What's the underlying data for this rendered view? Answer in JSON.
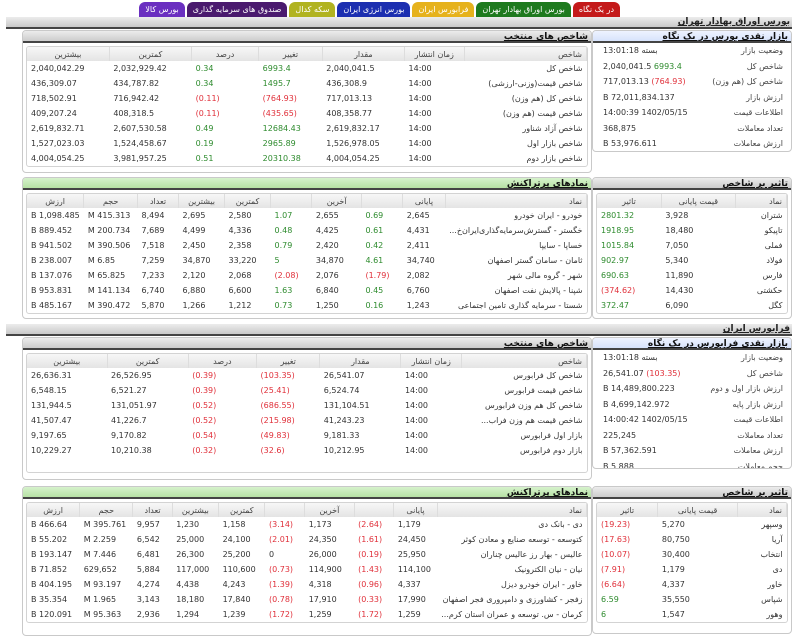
{
  "tabs": [
    {
      "label": "در یک نگاه",
      "color": "#c41a1a"
    },
    {
      "label": "بورس اوراق بهادار تهران",
      "color": "#1e7a1e"
    },
    {
      "label": "فرابورس ایران",
      "color": "#e6b21c"
    },
    {
      "label": "بورس انرژی ایران",
      "color": "#1c2fb0"
    },
    {
      "label": "سکه کدال",
      "color": "#b1b320"
    },
    {
      "label": "صندوق های سرمایه گذاری",
      "color": "#4a1a6e"
    },
    {
      "label": "بورس کالا",
      "color": "#6a2fc0"
    }
  ],
  "tse": {
    "section_title": "بورس اوراق بهادار تهران",
    "summary": {
      "title": "بازار نقدی بورس در یک نگاه",
      "rows": [
        {
          "label": "وضعیت بازار",
          "value": "بسته 13:01:18",
          "change": ""
        },
        {
          "label": "شاخص کل",
          "value": "2,040,041.5",
          "change": "6993.4",
          "dir": "pos"
        },
        {
          "label": "شاخص کل (هم وزن)",
          "value": "717,013.13",
          "change": "(764.93)",
          "dir": "neg"
        },
        {
          "label": "ارزش بازار",
          "value": "72,011,834.137 B",
          "change": ""
        },
        {
          "label": "اطلاعات قیمت",
          "value": "1402/05/15 14:00:39",
          "change": ""
        },
        {
          "label": "تعداد معاملات",
          "value": "368,875",
          "change": ""
        },
        {
          "label": "ارزش معاملات",
          "value": "53,976.611 B",
          "change": ""
        },
        {
          "label": "حجم معاملات",
          "value": "7.916 B",
          "change": ""
        }
      ]
    },
    "indices": {
      "title": "شاخص های منتخب",
      "columns": [
        "شاخص",
        "زمان انتشار",
        "مقدار",
        "تغییر",
        "درصد",
        "کمترین",
        "بیشترین"
      ],
      "rows": [
        {
          "name": "شاخص کل",
          "time": "14:00",
          "value": "2,040,041.5",
          "change": "6993.4",
          "pct": "0.34",
          "low": "2,032,929.42",
          "high": "2,040,042.29",
          "dir": "pos"
        },
        {
          "name": "شاخص قیمت(وزنی-ارزشی)",
          "time": "14:00",
          "value": "436,308.9",
          "change": "1495.7",
          "pct": "0.34",
          "low": "434,787.82",
          "high": "436,309.07",
          "dir": "pos"
        },
        {
          "name": "شاخص کل (هم وزن)",
          "time": "14:00",
          "value": "717,013.13",
          "change": "(764.93)",
          "pct": "(0.11)",
          "low": "716,942.42",
          "high": "718,502.91",
          "dir": "neg"
        },
        {
          "name": "شاخص قیمت (هم وزن)",
          "time": "14:00",
          "value": "408,358.77",
          "change": "(435.65)",
          "pct": "(0.11)",
          "low": "408,318.5",
          "high": "409,207.24",
          "dir": "neg"
        },
        {
          "name": "شاخص آزاد شناور",
          "time": "14:00",
          "value": "2,619,832.17",
          "change": "12684.43",
          "pct": "0.49",
          "low": "2,607,530.58",
          "high": "2,619,832.71",
          "dir": "pos"
        },
        {
          "name": "شاخص بازار اول",
          "time": "14:00",
          "value": "1,526,978.05",
          "change": "2965.89",
          "pct": "0.19",
          "low": "1,524,458.67",
          "high": "1,527,023.03",
          "dir": "pos"
        },
        {
          "name": "شاخص بازار دوم",
          "time": "14:00",
          "value": "4,004,054.25",
          "change": "20310.38",
          "pct": "0.51",
          "low": "3,981,957.25",
          "high": "4,004,054.25",
          "dir": "pos"
        }
      ]
    },
    "impact": {
      "title": "تاثیر بر شاخص",
      "columns": [
        "نماد",
        "قیمت پایانی",
        "تاثیر"
      ],
      "rows": [
        {
          "symbol": "شتران",
          "close": "3,928",
          "impact": "2801.32",
          "dir": "pos"
        },
        {
          "symbol": "تاپیکو",
          "close": "18,480",
          "impact": "1918.95",
          "dir": "pos"
        },
        {
          "symbol": "فملی",
          "close": "7,050",
          "impact": "1015.84",
          "dir": "pos"
        },
        {
          "symbol": "فولاد",
          "close": "5,340",
          "impact": "902.97",
          "dir": "pos"
        },
        {
          "symbol": "فارس",
          "close": "11,890",
          "impact": "690.63",
          "dir": "pos"
        },
        {
          "symbol": "حکشتی",
          "close": "14,430",
          "impact": "(374.62)",
          "dir": "neg"
        },
        {
          "symbol": "کگل",
          "close": "6,090",
          "impact": "372.47",
          "dir": "pos"
        }
      ]
    },
    "active": {
      "title": "نمادهای پرتراکنش",
      "columns": [
        "نماد",
        "پایانی",
        "",
        "آخرین",
        "",
        "کمترین",
        "بیشترین",
        "تعداد",
        "حجم",
        "ارزش"
      ],
      "rows": [
        {
          "symbol": "خودرو - ایران خودرو",
          "close": "2,645",
          "close_pct": "0.69",
          "last": "2,655",
          "last_pct": "1.07",
          "low": "2,580",
          "high": "2,695",
          "count": "8,494",
          "volume": "415.313 M",
          "value": "1,098.485 B",
          "cdir": "pos",
          "ldir": "pos"
        },
        {
          "symbol": "خگستر - گسترش‌سرمایه‌گذاری‌ایران‌خ...",
          "close": "4,431",
          "close_pct": "0.61",
          "last": "4,425",
          "last_pct": "0.48",
          "low": "4,336",
          "high": "4,499",
          "count": "7,689",
          "volume": "200.734 M",
          "value": "889.452 B",
          "cdir": "pos",
          "ldir": "pos"
        },
        {
          "symbol": "خساپا - سایپا",
          "close": "2,411",
          "close_pct": "0.42",
          "last": "2,420",
          "last_pct": "0.79",
          "low": "2,358",
          "high": "2,450",
          "count": "7,518",
          "volume": "390.506 M",
          "value": "941.502 B",
          "cdir": "pos",
          "ldir": "pos"
        },
        {
          "symbol": "ثامان - سامان گستر اصفهان",
          "close": "34,740",
          "close_pct": "4.61",
          "last": "34,870",
          "last_pct": "5",
          "low": "33,220",
          "high": "34,870",
          "count": "7,259",
          "volume": "6.85 M",
          "value": "238.007 B",
          "cdir": "pos",
          "ldir": "pos"
        },
        {
          "symbol": "شهر - گروه مالی شهر",
          "close": "2,082",
          "close_pct": "(1.79)",
          "last": "2,076",
          "last_pct": "(2.08)",
          "low": "2,068",
          "high": "2,120",
          "count": "7,233",
          "volume": "65.825 M",
          "value": "137.076 B",
          "cdir": "neg",
          "ldir": "neg"
        },
        {
          "symbol": "شپنا - پالایش نفت اصفهان",
          "close": "6,760",
          "close_pct": "0.45",
          "last": "6,840",
          "last_pct": "1.63",
          "low": "6,600",
          "high": "6,880",
          "count": "6,740",
          "volume": "141.134 M",
          "value": "953.831 B",
          "cdir": "pos",
          "ldir": "pos"
        },
        {
          "symbol": "شستا - سرمایه گذاری تامین اجتماعی",
          "close": "1,243",
          "close_pct": "0.16",
          "last": "1,250",
          "last_pct": "0.73",
          "low": "1,212",
          "high": "1,266",
          "count": "5,870",
          "volume": "390.472 M",
          "value": "485.167 B",
          "cdir": "pos",
          "ldir": "pos"
        }
      ]
    }
  },
  "ifb": {
    "section_title": "فرابورس ایران",
    "summary": {
      "title": "بازار نقدی فرابورس در یک نگاه",
      "rows": [
        {
          "label": "وضعیت بازار",
          "value": "بسته 13:01:18",
          "change": ""
        },
        {
          "label": "شاخص کل",
          "value": "26,541.07",
          "change": "(103.35)",
          "dir": "neg"
        },
        {
          "label": "ارزش بازار اول و دوم",
          "value": "14,489,800.223 B",
          "change": ""
        },
        {
          "label": "ارزش بازار پایه",
          "value": "4,699,142.972 B",
          "change": ""
        },
        {
          "label": "اطلاعات قیمت",
          "value": "1402/05/15 14:00:42",
          "change": ""
        },
        {
          "label": "تعداد معاملات",
          "value": "225,245",
          "change": ""
        },
        {
          "label": "ارزش معاملات",
          "value": "57,362.591 B",
          "change": ""
        },
        {
          "label": "حجم معاملات",
          "value": "5.888 B",
          "change": ""
        }
      ]
    },
    "indices": {
      "title": "شاخص های منتخب",
      "columns": [
        "شاخص",
        "زمان انتشار",
        "مقدار",
        "تغییر",
        "درصد",
        "کمترین",
        "بیشترین"
      ],
      "rows": [
        {
          "name": "شاخص کل فرابورس",
          "time": "14:00",
          "value": "26,541.07",
          "change": "(103.35)",
          "pct": "(0.39)",
          "low": "26,526.95",
          "high": "26,636.31",
          "dir": "neg"
        },
        {
          "name": "شاخص قیمت فرابورس",
          "time": "14:00",
          "value": "6,524.74",
          "change": "(25.41)",
          "pct": "(0.39)",
          "low": "6,521.27",
          "high": "6,548.15",
          "dir": "neg"
        },
        {
          "name": "شاخص کل هم وزن فرابورس",
          "time": "14:00",
          "value": "131,104.51",
          "change": "(686.55)",
          "pct": "(0.52)",
          "low": "131,051.97",
          "high": "131,944.5",
          "dir": "neg"
        },
        {
          "name": "شاخص قیمت هم وزن فراب...",
          "time": "14:00",
          "value": "41,243.23",
          "change": "(215.98)",
          "pct": "(0.52)",
          "low": "41,226.7",
          "high": "41,507.47",
          "dir": "neg"
        },
        {
          "name": "بازار اول فرابورس",
          "time": "14:00",
          "value": "9,181.33",
          "change": "(49.83)",
          "pct": "(0.54)",
          "low": "9,170.82",
          "high": "9,197.65",
          "dir": "neg"
        },
        {
          "name": "بازار دوم فرابورس",
          "time": "14:00",
          "value": "10,212.95",
          "change": "(32.6)",
          "pct": "(0.32)",
          "low": "10,210.38",
          "high": "10,229.27",
          "dir": "neg"
        }
      ]
    },
    "impact": {
      "title": "تاثیر بر شاخص",
      "columns": [
        "نماد",
        "قیمت پایانی",
        "تاثیر"
      ],
      "rows": [
        {
          "symbol": "وسپهر",
          "close": "5,270",
          "impact": "(19.23)",
          "dir": "neg"
        },
        {
          "symbol": "آریا",
          "close": "80,750",
          "impact": "(17.63)",
          "dir": "neg"
        },
        {
          "symbol": "انتخاب",
          "close": "30,400",
          "impact": "(10.07)",
          "dir": "neg"
        },
        {
          "symbol": "دی",
          "close": "1,179",
          "impact": "(7.91)",
          "dir": "neg"
        },
        {
          "symbol": "خاور",
          "close": "4,337",
          "impact": "(6.64)",
          "dir": "neg"
        },
        {
          "symbol": "شپاس",
          "close": "35,550",
          "impact": "6.59",
          "dir": "pos"
        },
        {
          "symbol": "وهور",
          "close": "1,547",
          "impact": "6",
          "dir": "pos"
        }
      ]
    },
    "active": {
      "title": "نمادهای پرتراکنش",
      "columns": [
        "نماد",
        "پایانی",
        "",
        "آخرین",
        "",
        "کمترین",
        "بیشترین",
        "تعداد",
        "حجم",
        "ارزش"
      ],
      "rows": [
        {
          "symbol": "دی - بانک دی",
          "close": "1,179",
          "close_pct": "(2.64)",
          "last": "1,173",
          "last_pct": "(3.14)",
          "low": "1,158",
          "high": "1,230",
          "count": "9,957",
          "volume": "395.761 M",
          "value": "466.64 B",
          "cdir": "neg",
          "ldir": "neg"
        },
        {
          "symbol": "کتوسعه - توسعه صنایع و معادن کوثر",
          "close": "24,450",
          "close_pct": "(1.61)",
          "last": "24,350",
          "last_pct": "(2.01)",
          "low": "24,100",
          "high": "25,000",
          "count": "6,542",
          "volume": "2.259 M",
          "value": "55.202 B",
          "cdir": "neg",
          "ldir": "neg"
        },
        {
          "symbol": "عالیس - بهار رز عالیس چناران",
          "close": "25,950",
          "close_pct": "(0.19)",
          "last": "26,000",
          "last_pct": "0",
          "low": "25,200",
          "high": "26,300",
          "count": "6,481",
          "volume": "7.446 M",
          "value": "193.147 B",
          "cdir": "neg",
          "ldir": "zero"
        },
        {
          "symbol": "نیان - نیان الکترونیک",
          "close": "114,100",
          "close_pct": "(1.43)",
          "last": "114,900",
          "last_pct": "(0.73)",
          "low": "110,600",
          "high": "117,000",
          "count": "5,884",
          "volume": "629,652",
          "value": "71.852 B",
          "cdir": "neg",
          "ldir": "neg"
        },
        {
          "symbol": "خاور - ایران خودرو دیزل",
          "close": "4,337",
          "close_pct": "(0.96)",
          "last": "4,318",
          "last_pct": "(1.39)",
          "low": "4,243",
          "high": "4,438",
          "count": "4,274",
          "volume": "93.197 M",
          "value": "404.195 B",
          "cdir": "neg",
          "ldir": "neg"
        },
        {
          "symbol": "زفجر - کشاورزی و دامپروری فجر اصفهان",
          "close": "17,990",
          "close_pct": "(0.33)",
          "last": "17,910",
          "last_pct": "(0.78)",
          "low": "17,840",
          "high": "18,180",
          "count": "3,143",
          "volume": "1.965 M",
          "value": "35.354 B",
          "cdir": "neg",
          "ldir": "neg"
        },
        {
          "symbol": "کرمان - س. توسعه و عمران استان کرم...",
          "close": "1,259",
          "close_pct": "(1.72)",
          "last": "1,259",
          "last_pct": "(1.72)",
          "low": "1,239",
          "high": "1,294",
          "count": "2,936",
          "volume": "95.363 M",
          "value": "120.091 B",
          "cdir": "neg",
          "ldir": "neg"
        }
      ]
    }
  },
  "colors": {
    "positive": "#2e8b2e",
    "negative": "#e0303a",
    "active_header": "#b6e1a4",
    "summary_header": "#d7e3fb"
  }
}
